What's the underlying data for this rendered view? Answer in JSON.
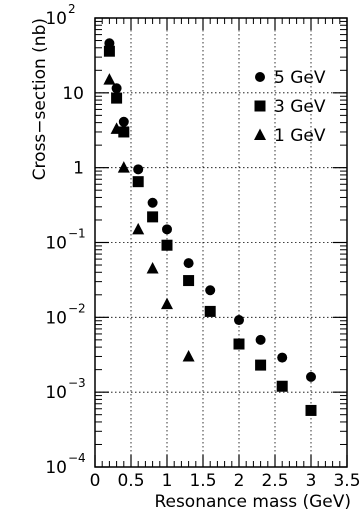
{
  "chart_data": {
    "type": "scatter",
    "title": "",
    "xlabel": "Resonance mass (GeV)",
    "ylabel": "Cross−section (nb)",
    "xlim": [
      0,
      3.5
    ],
    "ylim": [
      0.0001,
      100
    ],
    "yscale": "log",
    "grid": true,
    "legend_position": "top-right",
    "x_ticks": [
      {
        "value": 0,
        "label": "0"
      },
      {
        "value": 0.5,
        "label": "0.5"
      },
      {
        "value": 1,
        "label": "1"
      },
      {
        "value": 1.5,
        "label": "1.5"
      },
      {
        "value": 2,
        "label": "2"
      },
      {
        "value": 2.5,
        "label": "2.5"
      },
      {
        "value": 3,
        "label": "3"
      },
      {
        "value": 3.5,
        "label": "3.5"
      }
    ],
    "y_ticks": [
      {
        "value": 100,
        "base": "10",
        "exp": "2"
      },
      {
        "value": 10,
        "base": "10",
        "exp": ""
      },
      {
        "value": 1,
        "base": "1",
        "exp": ""
      },
      {
        "value": 0.1,
        "base": "10",
        "exp": "−1"
      },
      {
        "value": 0.01,
        "base": "10",
        "exp": "−2"
      },
      {
        "value": 0.001,
        "base": "10",
        "exp": "−3"
      },
      {
        "value": 0.0001,
        "base": "10",
        "exp": "−4"
      }
    ],
    "series": [
      {
        "name": "5 GeV",
        "marker": "circle",
        "color": "#000000",
        "points": [
          [
            0.2,
            46
          ],
          [
            0.3,
            11.5
          ],
          [
            0.4,
            4.1
          ],
          [
            0.6,
            0.95
          ],
          [
            0.8,
            0.34
          ],
          [
            1.0,
            0.15
          ],
          [
            1.3,
            0.053
          ],
          [
            1.6,
            0.023
          ],
          [
            2.0,
            0.0092
          ],
          [
            2.3,
            0.005
          ],
          [
            2.6,
            0.0029
          ],
          [
            3.0,
            0.0016
          ]
        ]
      },
      {
        "name": "3 GeV",
        "marker": "square",
        "color": "#000000",
        "points": [
          [
            0.2,
            36
          ],
          [
            0.3,
            8.5
          ],
          [
            0.4,
            3.0
          ],
          [
            0.6,
            0.65
          ],
          [
            0.8,
            0.22
          ],
          [
            1.0,
            0.092
          ],
          [
            1.3,
            0.031
          ],
          [
            1.6,
            0.012
          ],
          [
            2.0,
            0.0044
          ],
          [
            2.3,
            0.0023
          ],
          [
            2.6,
            0.0012
          ],
          [
            3.0,
            0.00057
          ]
        ]
      },
      {
        "name": "1 GeV",
        "marker": "triangle",
        "color": "#000000",
        "points": [
          [
            0.2,
            15
          ],
          [
            0.3,
            3.3
          ],
          [
            0.4,
            1.0
          ],
          [
            0.6,
            0.15
          ],
          [
            0.8,
            0.045
          ],
          [
            1.0,
            0.015
          ],
          [
            1.3,
            0.003
          ]
        ]
      }
    ]
  }
}
